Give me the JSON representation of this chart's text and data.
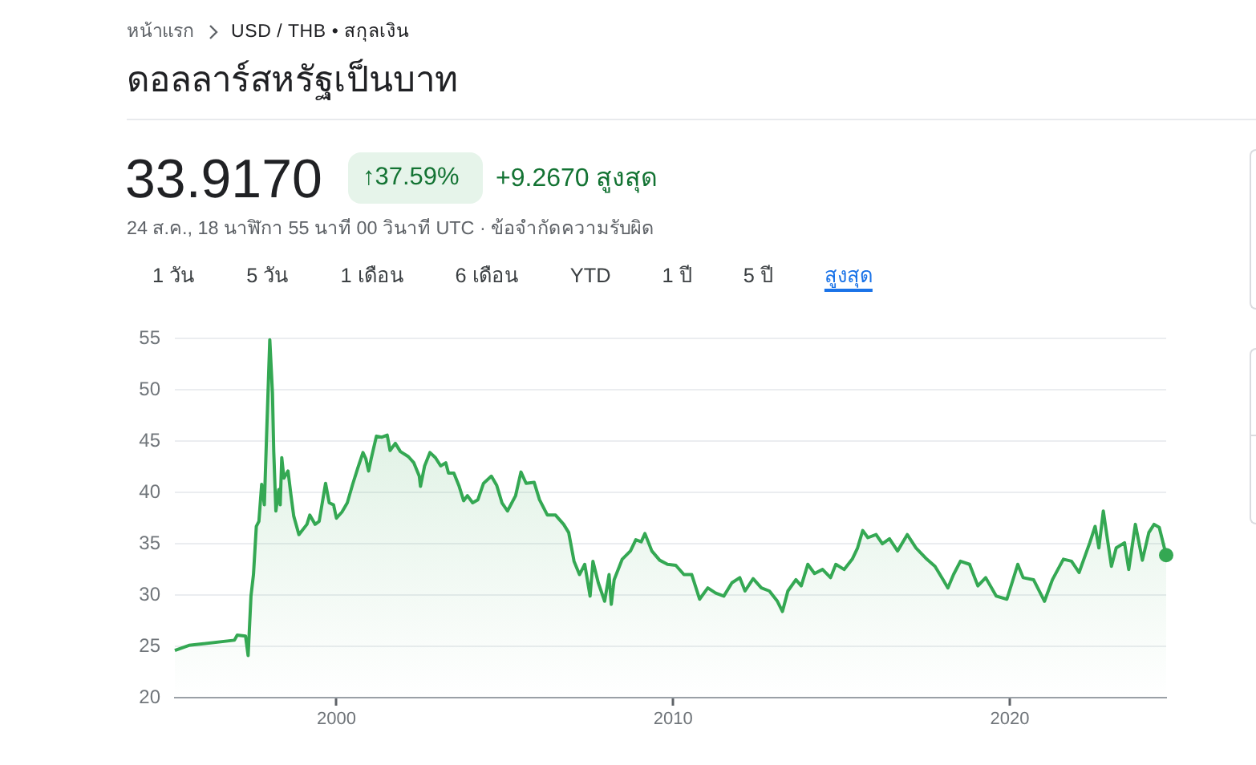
{
  "chart_data": {
    "type": "area",
    "title": "ดอลลาร์สหรัฐเป็นบาท",
    "annotations": [
      "หน้าแรก",
      "USD / THB • สกุลเงิน",
      "33.9170",
      "↑37.59%",
      "+9.2670 สูงสุด",
      "24 ส.ค., 18 นาฬิกา 55 นาที 00 วินาที UTC · ข้อจำกัดความรับผิด",
      "1 วัน",
      "5 วัน",
      "1 เดือน",
      "6 เดือน",
      "YTD",
      "1 ปี",
      "5 ปี",
      "สูงสุด"
    ],
    "series": [
      {
        "type": "area",
        "color": "#34a853",
        "x": [
          "1995-03-15",
          "1995-08-15",
          "1996-12-20",
          "1997-01-20",
          "1997-04-20",
          "1997-05-18",
          "1997-06-18",
          "1997-07-15",
          "1997-08-15",
          "1997-09-12",
          "1997-10-12",
          "1997-11-10",
          "1997-12-10",
          "1998-01-08",
          "1998-02-06",
          "1998-02-20",
          "1998-03-15",
          "1998-04-15",
          "1998-05-01",
          "1998-05-18",
          "1998-06-10",
          "1998-07-25",
          "1998-08-25",
          "1998-09-25",
          "1998-11-20",
          "1999-02-15",
          "1999-03-18",
          "1999-05-15",
          "1999-06-28",
          "1999-09-05",
          "1999-10-15",
          "1999-12-01",
          "2000-01-01",
          "2000-03-01",
          "2000-04-28",
          "2000-06-25",
          "2000-08-20",
          "2000-10-15",
          "2000-11-15",
          "2000-12-15",
          "2001-01-12",
          "2001-03-10",
          "2001-05-08",
          "2001-07-05",
          "2001-08-05",
          "2001-10-01",
          "2001-11-25",
          "2002-02-20",
          "2002-04-20",
          "2002-06-18",
          "2002-07-01",
          "2002-08-15",
          "2002-10-12",
          "2002-12-10",
          "2003-02-05",
          "2003-04-01",
          "2003-05-01",
          "2003-06-28",
          "2003-08-25",
          "2003-10-12",
          "2003-11-22",
          "2004-01-18",
          "2004-03-15",
          "2004-05-15",
          "2004-08-08",
          "2004-10-05",
          "2004-12-01",
          "2005-01-30",
          "2005-04-28",
          "2005-06-25",
          "2005-08-20",
          "2005-11-15",
          "2006-01-12",
          "2006-04-08",
          "2006-07-05",
          "2006-10-01",
          "2006-11-25",
          "2007-01-22",
          "2007-03-22",
          "2007-05-18",
          "2007-07-15",
          "2007-08-15",
          "2007-10-12",
          "2007-12-20",
          "2008-02-06",
          "2008-03-01",
          "2008-04-01",
          "2008-06-28",
          "2008-09-25",
          "2008-11-22",
          "2009-01-20",
          "2009-03-01",
          "2009-05-15",
          "2009-08-08",
          "2009-11-01",
          "2010-01-30",
          "2010-04-28",
          "2010-07-22",
          "2010-10-15",
          "2011-01-12",
          "2011-04-08",
          "2011-07-05",
          "2011-10-01",
          "2011-12-25",
          "2012-02-20",
          "2012-05-18",
          "2012-08-15",
          "2012-11-10",
          "2013-02-05",
          "2013-04-01",
          "2013-05-30",
          "2013-08-25",
          "2013-10-22",
          "2014-01-01",
          "2014-03-15",
          "2014-06-10",
          "2014-09-05",
          "2014-11-01",
          "2015-01-30",
          "2015-04-28",
          "2015-06-25",
          "2015-08-20",
          "2015-10-15",
          "2016-01-12",
          "2016-03-20",
          "2016-06-05",
          "2016-09-01",
          "2016-12-15",
          "2017-03-20",
          "2017-07-15",
          "2017-10-12",
          "2018-01-08",
          "2018-03-01",
          "2018-05-01",
          "2018-07-15",
          "2018-10-22",
          "2019-01-20",
          "2019-04-15",
          "2019-08-08",
          "2019-12-01",
          "2020-03-28",
          "2020-05-25",
          "2020-09-15",
          "2021-01-12",
          "2021-04-08",
          "2021-08-05",
          "2021-11-01",
          "2022-01-22",
          "2022-05-18",
          "2022-07-15",
          "2022-08-25",
          "2022-10-12",
          "2023-01-08",
          "2023-03-01",
          "2023-05-30",
          "2023-07-15",
          "2023-09-25",
          "2023-12-10",
          "2024-02-18",
          "2024-04-15",
          "2024-06-10",
          "2024-08-24"
        ],
        "values": [
          24.6,
          25.1,
          25.6,
          26.1,
          26.0,
          24.1,
          29.9,
          32.0,
          36.7,
          37.2,
          40.8,
          38.8,
          47.1,
          54.9,
          49.7,
          44.0,
          38.2,
          40.3,
          38.8,
          43.4,
          41.4,
          42.1,
          39.8,
          37.7,
          35.9,
          36.9,
          37.8,
          36.9,
          37.2,
          40.9,
          39.0,
          38.8,
          37.5,
          38.1,
          39.0,
          40.8,
          42.4,
          43.9,
          43.3,
          42.1,
          43.3,
          45.5,
          45.4,
          45.6,
          44.1,
          44.8,
          44.0,
          43.5,
          42.9,
          41.6,
          40.6,
          42.6,
          43.9,
          43.4,
          42.6,
          42.9,
          41.9,
          41.9,
          40.6,
          39.2,
          39.7,
          39.0,
          39.3,
          40.9,
          41.6,
          40.7,
          39.0,
          38.2,
          39.7,
          42.0,
          40.9,
          41.0,
          39.3,
          37.8,
          37.8,
          36.9,
          36.1,
          33.3,
          32.0,
          33.0,
          29.9,
          33.3,
          31.2,
          29.4,
          32.0,
          29.1,
          31.5,
          33.5,
          34.3,
          35.4,
          35.2,
          36.0,
          34.3,
          33.4,
          33.0,
          32.9,
          32.0,
          32.0,
          29.6,
          30.7,
          30.2,
          29.9,
          31.2,
          31.7,
          30.4,
          31.6,
          30.7,
          30.4,
          29.4,
          28.4,
          30.4,
          31.5,
          30.9,
          33.0,
          32.1,
          32.5,
          31.7,
          33.0,
          32.5,
          33.5,
          34.6,
          36.3,
          35.6,
          35.9,
          35.0,
          35.5,
          34.3,
          35.9,
          34.6,
          33.5,
          32.8,
          31.5,
          30.7,
          32.0,
          33.3,
          33.0,
          30.9,
          31.7,
          29.9,
          29.6,
          33.0,
          31.7,
          31.5,
          29.4,
          31.5,
          33.5,
          33.3,
          32.2,
          35.1,
          36.7,
          34.6,
          38.2,
          32.8,
          34.6,
          35.1,
          32.5,
          36.9,
          33.4,
          36.1,
          36.9,
          36.6,
          33.9
        ]
      },
      {
        "type": "scatter",
        "color": "#34a853",
        "marker": "circle",
        "x": [
          "2024-08-24"
        ],
        "values": [
          33.9
        ]
      }
    ],
    "xlim": [
      "1995-03-15",
      "2024-08-24"
    ],
    "xticks": [
      "2000",
      "2010",
      "2020"
    ],
    "ylim": [
      20,
      55
    ],
    "yticks": [
      20,
      25,
      30,
      35,
      40,
      45,
      50,
      55
    ],
    "grid": "y"
  }
}
